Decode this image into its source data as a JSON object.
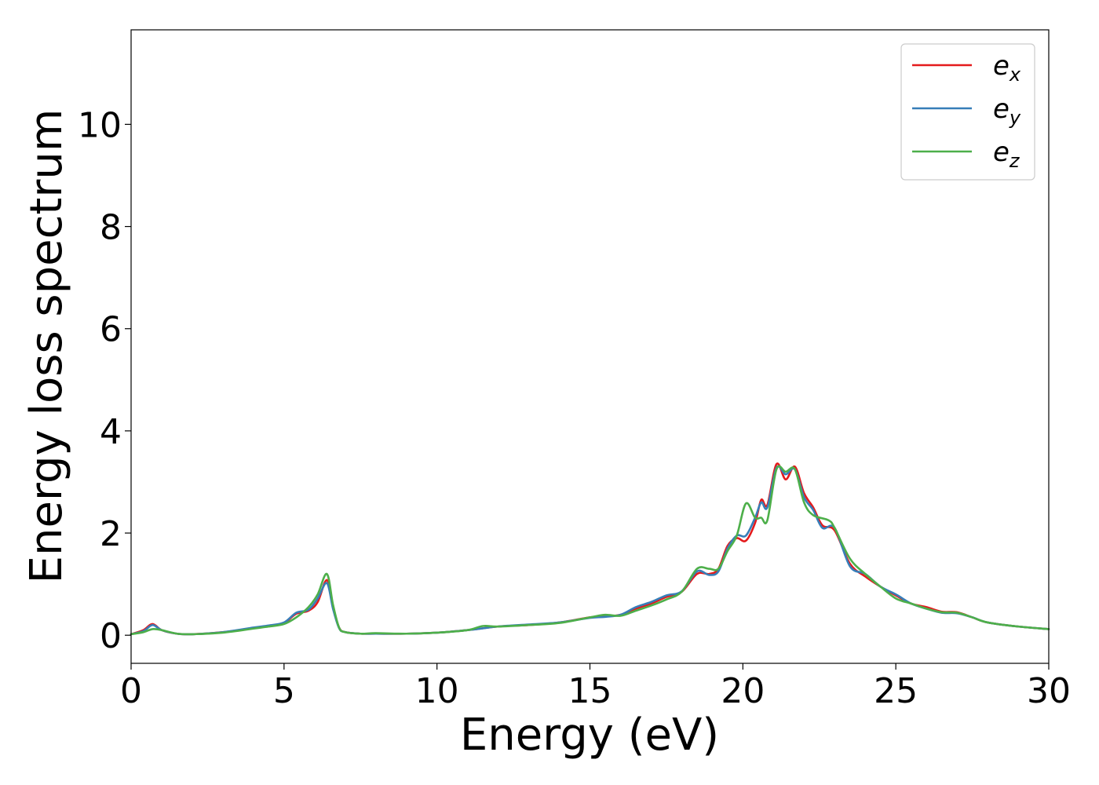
{
  "chart_data": {
    "type": "line",
    "title": "",
    "xlabel": "Energy (eV)",
    "ylabel": "Energy loss spectrum",
    "xlim": [
      0,
      30
    ],
    "ylim": [
      -0.55,
      11.85
    ],
    "xticks": [
      0,
      5,
      10,
      15,
      20,
      25,
      30
    ],
    "xtick_labels": [
      "0",
      "5",
      "10",
      "15",
      "20",
      "25",
      "30"
    ],
    "yticks": [
      0,
      2,
      4,
      6,
      8,
      10
    ],
    "ytick_labels": [
      "0",
      "2",
      "4",
      "6",
      "8",
      "10"
    ],
    "grid": false,
    "legend_position": "top-right",
    "series": [
      {
        "name": "e_x",
        "label_base": "e",
        "label_sub": "x",
        "color": "#e41a1c",
        "x": [
          0,
          0.4,
          0.7,
          1.0,
          1.5,
          2,
          3,
          4,
          4.5,
          5,
          5.4,
          5.8,
          6.1,
          6.4,
          6.6,
          6.8,
          7,
          7.5,
          8,
          9,
          10,
          11,
          12,
          13,
          14,
          15,
          15.5,
          16,
          16.5,
          17,
          17.5,
          18,
          18.5,
          18.9,
          19.2,
          19.5,
          19.8,
          20.1,
          20.4,
          20.6,
          20.8,
          21.1,
          21.4,
          21.7,
          22,
          22.3,
          22.6,
          23,
          23.5,
          24,
          24.5,
          25,
          25.5,
          26,
          26.5,
          27,
          27.5,
          28,
          29,
          30
        ],
        "y": [
          0.02,
          0.1,
          0.22,
          0.1,
          0.03,
          0.02,
          0.06,
          0.14,
          0.18,
          0.24,
          0.42,
          0.48,
          0.65,
          1.08,
          0.55,
          0.15,
          0.06,
          0.03,
          0.03,
          0.03,
          0.05,
          0.1,
          0.17,
          0.2,
          0.25,
          0.35,
          0.37,
          0.4,
          0.52,
          0.62,
          0.75,
          0.85,
          1.2,
          1.2,
          1.3,
          1.75,
          1.9,
          1.85,
          2.2,
          2.65,
          2.55,
          3.35,
          3.05,
          3.3,
          2.78,
          2.5,
          2.15,
          2.05,
          1.4,
          1.15,
          0.95,
          0.78,
          0.62,
          0.55,
          0.46,
          0.45,
          0.35,
          0.25,
          0.17,
          0.12
        ]
      },
      {
        "name": "e_y",
        "label_base": "e",
        "label_sub": "y",
        "color": "#377eb8",
        "x": [
          0,
          0.4,
          0.7,
          1.0,
          1.5,
          2,
          3,
          4,
          4.5,
          5,
          5.4,
          5.8,
          6.1,
          6.4,
          6.6,
          6.8,
          7,
          7.5,
          8,
          9,
          10,
          11,
          12,
          13,
          14,
          15,
          15.5,
          16,
          16.5,
          17,
          17.5,
          18,
          18.5,
          18.9,
          19.2,
          19.5,
          19.8,
          20.1,
          20.4,
          20.6,
          20.8,
          21.1,
          21.4,
          21.7,
          22,
          22.3,
          22.6,
          23,
          23.5,
          24,
          24.5,
          25,
          25.5,
          26,
          26.5,
          27,
          27.5,
          28,
          29,
          30
        ],
        "y": [
          0.02,
          0.08,
          0.2,
          0.1,
          0.03,
          0.02,
          0.06,
          0.15,
          0.19,
          0.25,
          0.44,
          0.5,
          0.72,
          1.02,
          0.52,
          0.14,
          0.06,
          0.03,
          0.03,
          0.03,
          0.05,
          0.1,
          0.17,
          0.21,
          0.25,
          0.34,
          0.36,
          0.4,
          0.55,
          0.65,
          0.78,
          0.86,
          1.25,
          1.18,
          1.25,
          1.7,
          1.95,
          1.95,
          2.3,
          2.6,
          2.5,
          3.28,
          3.15,
          3.25,
          2.7,
          2.45,
          2.1,
          2.1,
          1.35,
          1.2,
          0.95,
          0.8,
          0.62,
          0.52,
          0.44,
          0.43,
          0.35,
          0.25,
          0.17,
          0.12
        ]
      },
      {
        "name": "e_z",
        "label_base": "e",
        "label_sub": "z",
        "color": "#4daf4a",
        "x": [
          0,
          0.4,
          0.7,
          1.0,
          1.5,
          2,
          3,
          4,
          4.5,
          5,
          5.4,
          5.8,
          6.1,
          6.4,
          6.6,
          6.8,
          7,
          7.5,
          8,
          9,
          10,
          11,
          11.5,
          12,
          13,
          14,
          15,
          15.5,
          16,
          16.5,
          17,
          17.5,
          18,
          18.5,
          18.9,
          19.2,
          19.5,
          19.8,
          20.1,
          20.4,
          20.6,
          20.8,
          21.1,
          21.4,
          21.7,
          22,
          22.3,
          22.8,
          23,
          23.5,
          24,
          24.5,
          25,
          25.5,
          26,
          26.5,
          27,
          27.5,
          28,
          29,
          30
        ],
        "y": [
          0.02,
          0.06,
          0.12,
          0.1,
          0.03,
          0.02,
          0.05,
          0.13,
          0.17,
          0.22,
          0.35,
          0.55,
          0.8,
          1.2,
          0.6,
          0.15,
          0.06,
          0.03,
          0.04,
          0.03,
          0.05,
          0.1,
          0.18,
          0.17,
          0.2,
          0.24,
          0.35,
          0.4,
          0.38,
          0.48,
          0.58,
          0.7,
          0.85,
          1.3,
          1.3,
          1.3,
          1.65,
          1.95,
          2.58,
          2.3,
          2.3,
          2.25,
          3.25,
          3.2,
          3.25,
          2.6,
          2.35,
          2.25,
          2.1,
          1.5,
          1.2,
          0.95,
          0.72,
          0.62,
          0.52,
          0.45,
          0.44,
          0.35,
          0.25,
          0.17,
          0.12
        ]
      }
    ]
  }
}
